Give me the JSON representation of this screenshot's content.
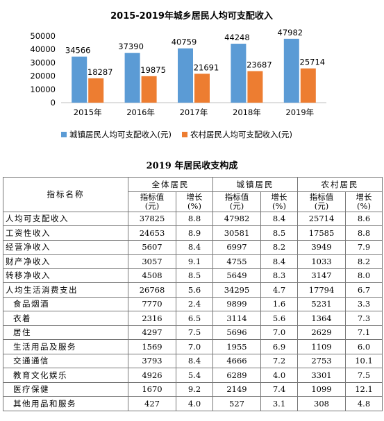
{
  "chart_data": {
    "type": "bar",
    "title": "2015-2019年城乡居民人均可支配收入",
    "categories": [
      "2015年",
      "2016年",
      "2017年",
      "2018年",
      "2019年"
    ],
    "series": [
      {
        "name": "城镇居民人均可支配收入(元)",
        "values": [
          34566,
          37390,
          40759,
          44248,
          47982
        ],
        "color": "#5b9bd5"
      },
      {
        "name": "农村居民人均可支配收入(元)",
        "values": [
          18287,
          19875,
          21691,
          23687,
          25714
        ],
        "color": "#ed7d31"
      }
    ],
    "ylim": [
      0,
      50000
    ],
    "yticks": [
      0,
      10000,
      20000,
      30000,
      40000,
      50000
    ],
    "legend": "bottom",
    "grid": false
  },
  "table": {
    "title": "2019 年居民收支构成",
    "indicator_header": "指标名称",
    "group_headers": [
      "全体居民",
      "城镇居民",
      "农村居民"
    ],
    "value_header": "指标值",
    "value_unit": "(元)",
    "growth_header": "增长",
    "growth_unit": "(%)",
    "rows": [
      {
        "name": "人均可支配收入",
        "v": [
          "37825",
          "8.8",
          "47982",
          "8.4",
          "25714",
          "8.6"
        ]
      },
      {
        "name": "工资性收入",
        "v": [
          "24653",
          "8.9",
          "30581",
          "8.5",
          "17585",
          "8.8"
        ]
      },
      {
        "name": "经营净收入",
        "v": [
          "5607",
          "8.4",
          "6997",
          "8.2",
          "3949",
          "7.9"
        ]
      },
      {
        "name": "财产净收入",
        "v": [
          "3057",
          "9.1",
          "4755",
          "8.4",
          "1033",
          "8.2"
        ]
      },
      {
        "name": "转移净收入",
        "v": [
          "4508",
          "8.5",
          "5649",
          "8.3",
          "3147",
          "8.0"
        ]
      },
      {
        "name": "人均生活消费支出",
        "v": [
          "26768",
          "5.6",
          "34295",
          "4.7",
          "17794",
          "6.7"
        ]
      },
      {
        "name": "食品烟酒",
        "v": [
          "7770",
          "2.4",
          "9899",
          "1.6",
          "5231",
          "3.3"
        ]
      },
      {
        "name": "衣着",
        "v": [
          "2316",
          "6.5",
          "3114",
          "5.6",
          "1364",
          "7.3"
        ]
      },
      {
        "name": "居住",
        "v": [
          "4297",
          "7.5",
          "5696",
          "7.0",
          "2629",
          "7.1"
        ]
      },
      {
        "name": "生活用品及服务",
        "v": [
          "1569",
          "7.0",
          "1955",
          "6.9",
          "1109",
          "6.0"
        ]
      },
      {
        "name": "交通通信",
        "v": [
          "3793",
          "8.4",
          "4666",
          "7.2",
          "2753",
          "10.1"
        ]
      },
      {
        "name": "教育文化娱乐",
        "v": [
          "4926",
          "5.4",
          "6289",
          "4.0",
          "3301",
          "7.5"
        ]
      },
      {
        "name": "医疗保健",
        "v": [
          "1670",
          "9.2",
          "2149",
          "7.4",
          "1099",
          "12.1"
        ]
      },
      {
        "name": "其他用品和服务",
        "v": [
          "427",
          "4.0",
          "527",
          "3.1",
          "308",
          "4.8"
        ]
      }
    ]
  }
}
